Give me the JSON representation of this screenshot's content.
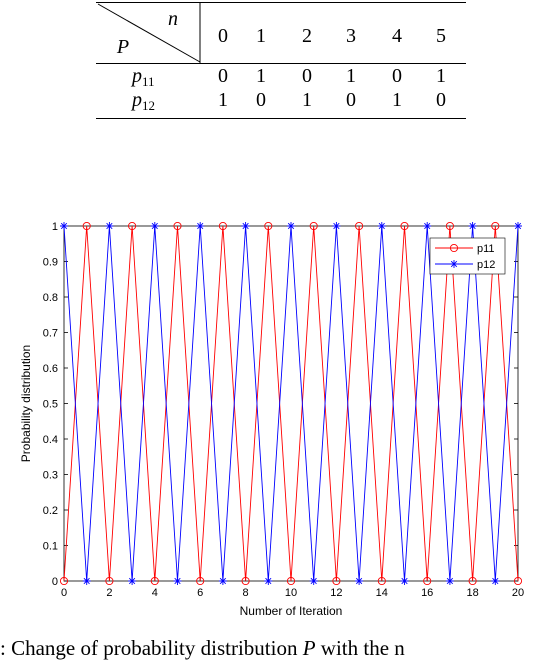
{
  "table": {
    "header_top": "n",
    "header_bottom": "P",
    "columns": [
      "0",
      "1",
      "2",
      "3",
      "4",
      "5"
    ],
    "rows": [
      {
        "label": "p",
        "sub": "11",
        "values": [
          "0",
          "1",
          "0",
          "1",
          "0",
          "1"
        ]
      },
      {
        "label": "p",
        "sub": "12",
        "values": [
          "1",
          "0",
          "1",
          "0",
          "1",
          "0"
        ]
      }
    ]
  },
  "chart_data": {
    "type": "line",
    "xlabel": "Number of Iteration",
    "ylabel": "Probability distribution",
    "xlim": [
      0,
      20
    ],
    "ylim": [
      0,
      1
    ],
    "xticks": [
      "0",
      "2",
      "4",
      "6",
      "8",
      "10",
      "12",
      "14",
      "16",
      "18",
      "20"
    ],
    "yticks": [
      "0",
      "0.1",
      "0.2",
      "0.3",
      "0.4",
      "0.5",
      "0.6",
      "0.7",
      "0.8",
      "0.9",
      "1"
    ],
    "x": [
      0,
      1,
      2,
      3,
      4,
      5,
      6,
      7,
      8,
      9,
      10,
      11,
      12,
      13,
      14,
      15,
      16,
      17,
      18,
      19,
      20
    ],
    "legend_position": "top-right",
    "grid": false,
    "series": [
      {
        "name": "p11",
        "color": "#ff0000",
        "marker": "circle",
        "values": [
          0,
          1,
          0,
          1,
          0,
          1,
          0,
          1,
          0,
          1,
          0,
          1,
          0,
          1,
          0,
          1,
          0,
          1,
          0,
          1,
          0
        ]
      },
      {
        "name": "p12",
        "color": "#0000ff",
        "marker": "star",
        "values": [
          1,
          0,
          1,
          0,
          1,
          0,
          1,
          0,
          1,
          0,
          1,
          0,
          1,
          0,
          1,
          0,
          1,
          0,
          1,
          0,
          1
        ]
      }
    ]
  },
  "caption": {
    "prefix": ": Change of probability distribution ",
    "symbol": "P",
    "suffix": " with the n"
  }
}
